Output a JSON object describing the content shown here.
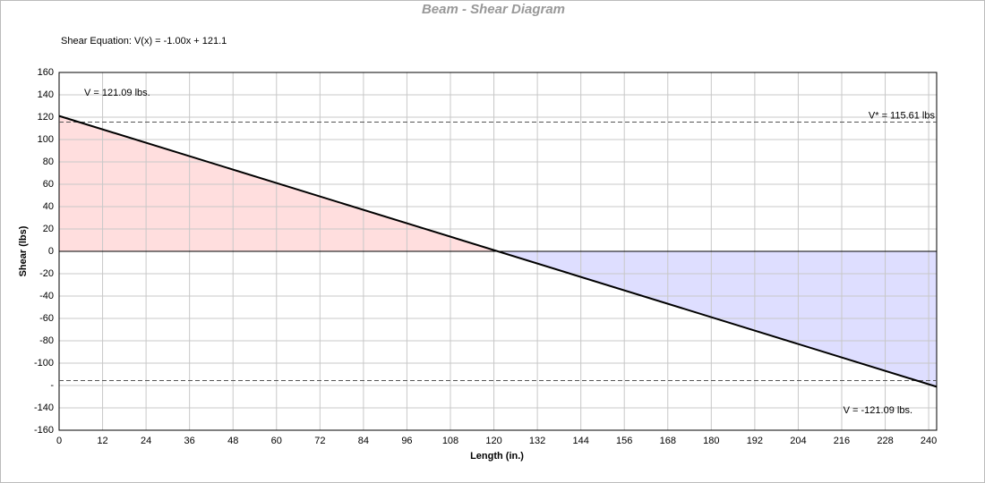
{
  "chart_data": {
    "type": "line",
    "title": "Beam - Shear Diagram",
    "subtitle": "Shear Equation:  V(x) = -1.00x + 121.1",
    "x_label": "Length (in.)",
    "y_label": "Shear (lbs)",
    "series": [
      {
        "name": "Shear",
        "color": "#000000",
        "positive_fill": "#ffdede",
        "negative_fill": "#dedeff",
        "x": [
          0,
          242.2
        ],
        "values": [
          121.1,
          -121.1
        ]
      }
    ],
    "reference_lines": [
      {
        "value": 115.61,
        "label": "V* = 115.61 lbs"
      },
      {
        "value": -115.61
      }
    ],
    "annotations": [
      "V = 121.09 lbs.",
      "V = -121.09 lbs."
    ],
    "xlim": [
      0,
      242.2
    ],
    "xticks": [
      0,
      12,
      24,
      36,
      48,
      60,
      72,
      84,
      96,
      108,
      120,
      132,
      144,
      156,
      168,
      180,
      192,
      204,
      216,
      228,
      240
    ],
    "ylim": [
      -160,
      160
    ],
    "yticks": [
      -160,
      -140,
      {
        "value": -120,
        "label": "-"
      },
      -100,
      -80,
      -60,
      -40,
      -20,
      0,
      20,
      40,
      60,
      80,
      100,
      120,
      140,
      160
    ],
    "grid": true
  }
}
